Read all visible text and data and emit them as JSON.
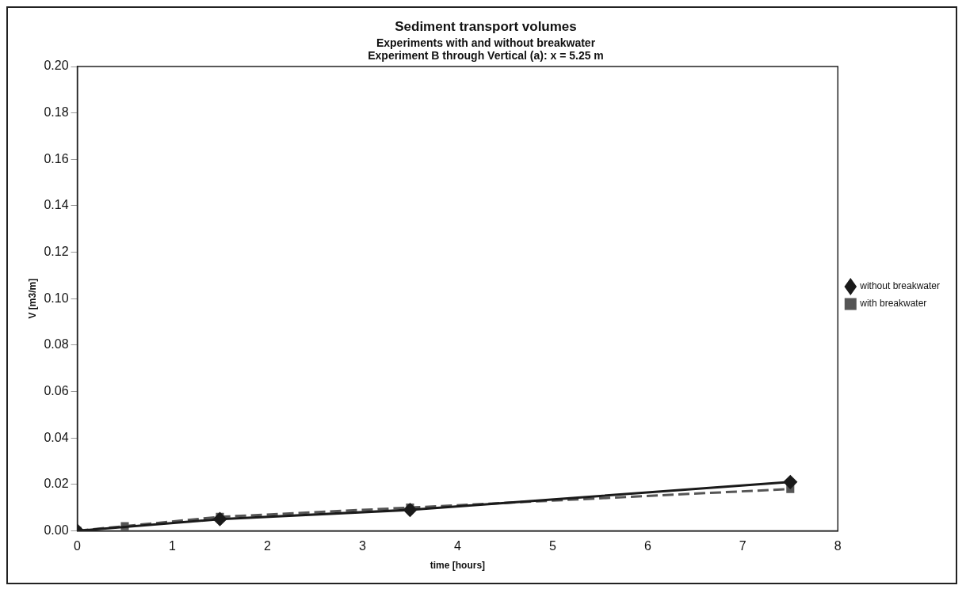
{
  "chart_data": {
    "type": "line",
    "title": "Sediment transport volumes",
    "subtitle": "Experiments with and without breakwater\nExperiment B through Vertical (a): x = 5.25 m",
    "xlabel": "time [hours]",
    "ylabel": "V [m3/m]",
    "series": [
      {
        "name": "with breakwater",
        "color": "#555555",
        "x": [
          0,
          0.5,
          1.5,
          3.5,
          7.5
        ],
        "values": [
          0,
          0.002,
          0.006,
          0.01,
          0.018
        ],
        "marker": "square",
        "line_style": "dashed"
      },
      {
        "name": "without breakwater",
        "color": "#1a1a1a",
        "x": [
          0,
          1.5,
          3.5,
          7.5
        ],
        "values": [
          0,
          0.005,
          0.009,
          0.021
        ],
        "marker": "diamond",
        "line_style": "solid"
      }
    ],
    "xlim": [
      0,
      8
    ],
    "xticks": [
      0,
      1,
      2,
      3,
      4,
      5,
      6,
      7,
      8
    ],
    "ylim": [
      0,
      0.2
    ],
    "yticks": [
      {
        "value": 0,
        "label": "0.00"
      },
      {
        "value": 0.02,
        "label": "0.02"
      },
      {
        "value": 0.04,
        "label": "0.04"
      },
      {
        "value": 0.06,
        "label": "0.06"
      },
      {
        "value": 0.08,
        "label": "0.08"
      },
      {
        "value": 0.1,
        "label": "0.10"
      },
      {
        "value": 0.12,
        "label": "0.12"
      },
      {
        "value": 0.14,
        "label": "0.14"
      },
      {
        "value": 0.16,
        "label": "0.16"
      },
      {
        "value": 0.18,
        "label": "0.18"
      },
      {
        "value": 0.2,
        "label": "0.20"
      }
    ],
    "grid": false,
    "legend": "right"
  }
}
